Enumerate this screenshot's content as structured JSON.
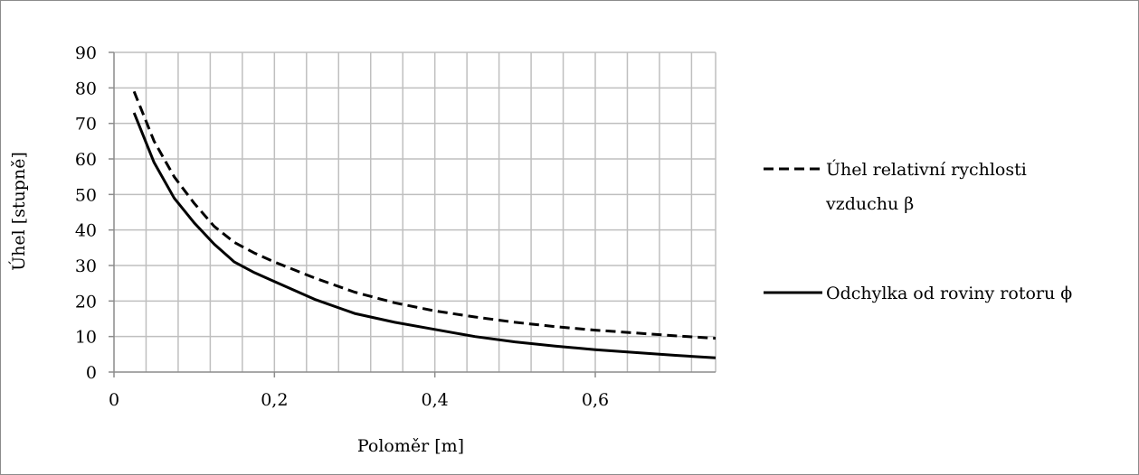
{
  "chart_data": {
    "type": "line",
    "xlabel": "Poloměr [m]",
    "ylabel": "Úhel [stupně]",
    "xlim": [
      0,
      0.75
    ],
    "ylim": [
      0,
      90
    ],
    "x_ticks": [
      "0",
      "0,2",
      "0,4",
      "0,6"
    ],
    "x_tick_values": [
      0,
      0.2,
      0.4,
      0.6
    ],
    "y_ticks": [
      "0",
      "10",
      "20",
      "30",
      "40",
      "50",
      "60",
      "70",
      "80",
      "90"
    ],
    "y_tick_values": [
      0,
      10,
      20,
      30,
      40,
      50,
      60,
      70,
      80,
      90
    ],
    "grid": true,
    "legend_position": "right",
    "series": [
      {
        "name": "Úhel relativní rychlosti vzduchu β",
        "style": "dashed",
        "color": "#000000",
        "x": [
          0.025,
          0.05,
          0.075,
          0.1,
          0.125,
          0.15,
          0.175,
          0.2,
          0.25,
          0.3,
          0.35,
          0.4,
          0.45,
          0.5,
          0.55,
          0.6,
          0.65,
          0.7,
          0.75
        ],
        "y": [
          79,
          65,
          55,
          47.5,
          41,
          36.5,
          33.5,
          31,
          26.5,
          22.5,
          19.5,
          17.2,
          15.5,
          14,
          12.8,
          11.8,
          11,
          10.2,
          9.5
        ]
      },
      {
        "name": "Odchylka od roviny rotoru ϕ",
        "style": "solid",
        "color": "#000000",
        "x": [
          0.025,
          0.05,
          0.075,
          0.1,
          0.125,
          0.15,
          0.175,
          0.2,
          0.25,
          0.3,
          0.35,
          0.4,
          0.45,
          0.5,
          0.55,
          0.6,
          0.65,
          0.7,
          0.75
        ],
        "y": [
          73,
          59,
          49,
          42,
          36,
          31,
          28,
          25.5,
          20.5,
          16.5,
          14,
          12,
          10,
          8.5,
          7.3,
          6.3,
          5.5,
          4.7,
          4
        ]
      }
    ]
  }
}
